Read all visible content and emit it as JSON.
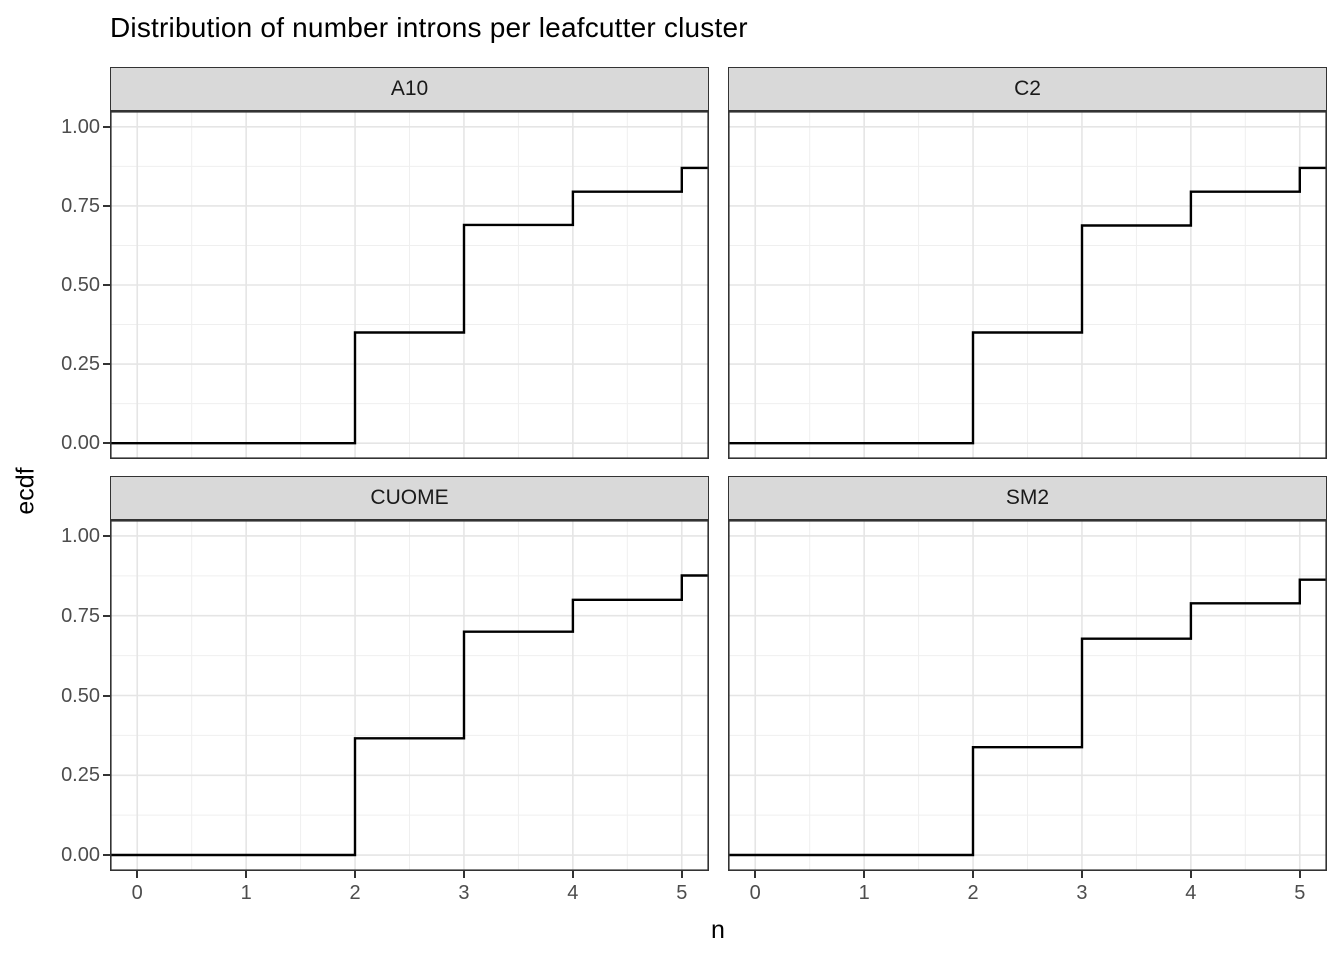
{
  "title": "Distribution of number introns per leafcutter cluster",
  "axes": {
    "x_title": "n",
    "y_title": "ecdf"
  },
  "chart_data": {
    "type": "line",
    "subtype": "ecdf-step-faceted",
    "title": "Distribution of number introns per leafcutter cluster",
    "xlabel": "n",
    "ylabel": "ecdf",
    "xlim": [
      -0.25,
      5.25
    ],
    "ylim": [
      -0.05,
      1.05
    ],
    "grid": true,
    "legend": false,
    "x_ticks": [
      {
        "v": 0,
        "label": "0"
      },
      {
        "v": 1,
        "label": "1"
      },
      {
        "v": 2,
        "label": "2"
      },
      {
        "v": 3,
        "label": "3"
      },
      {
        "v": 4,
        "label": "4"
      },
      {
        "v": 5,
        "label": "5"
      }
    ],
    "y_ticks": [
      {
        "v": 0.0,
        "label": "0.00"
      },
      {
        "v": 0.25,
        "label": "0.25"
      },
      {
        "v": 0.5,
        "label": "0.50"
      },
      {
        "v": 0.75,
        "label": "0.75"
      },
      {
        "v": 1.0,
        "label": "1.00"
      }
    ],
    "x_minor_breaks": [
      0.5,
      1.5,
      2.5,
      3.5,
      4.5
    ],
    "y_minor_breaks": [
      0.125,
      0.375,
      0.625,
      0.875
    ],
    "facets": [
      {
        "label": "A10",
        "ecdf_start": 0,
        "steps": [
          [
            2,
            0.35
          ],
          [
            3,
            0.69
          ],
          [
            4,
            0.795
          ],
          [
            5,
            0.87
          ]
        ]
      },
      {
        "label": "C2",
        "ecdf_start": 0,
        "steps": [
          [
            2,
            0.35
          ],
          [
            3,
            0.688
          ],
          [
            4,
            0.795
          ],
          [
            5,
            0.87
          ]
        ]
      },
      {
        "label": "CUOME",
        "ecdf_start": 0,
        "steps": [
          [
            2,
            0.366
          ],
          [
            3,
            0.7
          ],
          [
            4,
            0.8
          ],
          [
            5,
            0.876
          ]
        ]
      },
      {
        "label": "SM2",
        "ecdf_start": 0,
        "steps": [
          [
            2,
            0.338
          ],
          [
            3,
            0.678
          ],
          [
            4,
            0.789
          ],
          [
            5,
            0.863
          ]
        ]
      }
    ]
  },
  "colors": {
    "background": "#ffffff",
    "strip_bg": "#d9d9d9",
    "strip_border": "#333333",
    "panel_border": "#333333",
    "grid_major": "#e5e5e5",
    "grid_minor": "#efefef",
    "ecdf_line": "#000000",
    "tick_text": "#4d4d4d",
    "tick_mark": "#333333",
    "title_text": "#000000"
  }
}
